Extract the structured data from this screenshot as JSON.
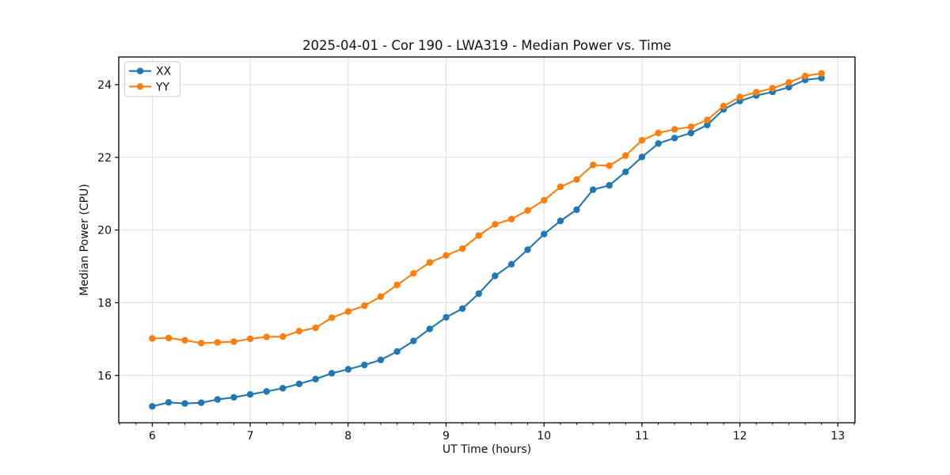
{
  "figure": {
    "background": "#ffffff",
    "text_color": "#111111",
    "spine_color": "#000000",
    "grid_color": "#e0e0e0"
  },
  "chart_data": {
    "type": "line",
    "title": "2025-04-01 - Cor 190 - LWA319 - Median Power vs. Time",
    "xlabel": "UT Time (hours)",
    "ylabel": "Median Power (CPU)",
    "xlim": [
      5.658,
      13.175
    ],
    "ylim": [
      14.7,
      24.76
    ],
    "x_ticks": [
      6,
      7,
      8,
      9,
      10,
      11,
      12,
      13
    ],
    "y_ticks": [
      16,
      18,
      20,
      22,
      24
    ],
    "x_minor_tick_step": 0.166667,
    "grid": true,
    "legend_position": "upper-left",
    "marker": "circle",
    "x": [
      6.0,
      6.167,
      6.333,
      6.5,
      6.667,
      6.833,
      7.0,
      7.167,
      7.333,
      7.5,
      7.667,
      7.833,
      8.0,
      8.167,
      8.333,
      8.5,
      8.667,
      8.833,
      9.0,
      9.167,
      9.333,
      9.5,
      9.667,
      9.833,
      10.0,
      10.167,
      10.333,
      10.5,
      10.667,
      10.833,
      11.0,
      11.167,
      11.333,
      11.5,
      11.667,
      11.833,
      12.0,
      12.167,
      12.333,
      12.5,
      12.667,
      12.833
    ],
    "series": [
      {
        "name": "XX",
        "color": "#1f77b4",
        "values": [
          15.15,
          15.26,
          15.23,
          15.25,
          15.34,
          15.4,
          15.48,
          15.56,
          15.65,
          15.77,
          15.9,
          16.06,
          16.17,
          16.29,
          16.43,
          16.66,
          16.95,
          17.28,
          17.6,
          17.84,
          18.25,
          18.74,
          19.06,
          19.46,
          19.89,
          20.25,
          20.56,
          21.11,
          21.23,
          21.6,
          22.01,
          22.38,
          22.53,
          22.67,
          22.89,
          23.32,
          23.55,
          23.7,
          23.8,
          23.93,
          24.13,
          24.18
        ]
      },
      {
        "name": "YY",
        "color": "#ff7f0e",
        "values": [
          17.02,
          17.03,
          16.97,
          16.89,
          16.91,
          16.93,
          17.01,
          17.06,
          17.07,
          17.22,
          17.31,
          17.59,
          17.76,
          17.92,
          18.17,
          18.49,
          18.81,
          19.11,
          19.3,
          19.49,
          19.85,
          20.16,
          20.3,
          20.54,
          20.82,
          21.19,
          21.39,
          21.79,
          21.77,
          22.05,
          22.47,
          22.67,
          22.77,
          22.84,
          23.03,
          23.41,
          23.66,
          23.79,
          23.9,
          24.06,
          24.24,
          24.31
        ]
      }
    ]
  }
}
